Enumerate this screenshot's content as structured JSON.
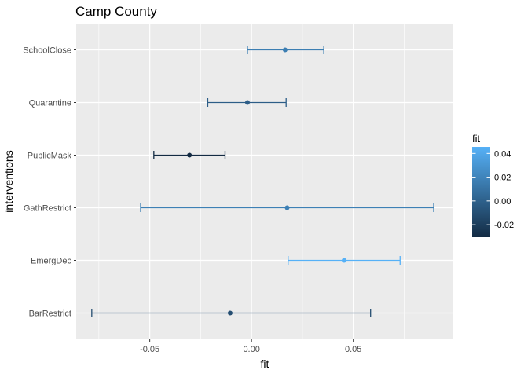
{
  "chart_data": {
    "type": "errorbar",
    "title": "Camp County",
    "xlabel": "fit",
    "ylabel": "interventions",
    "xlim": [
      -0.0785,
      0.0915
    ],
    "x_ticks": [
      -0.05,
      0.0,
      0.05
    ],
    "x_tick_labels": [
      "-0.05",
      "0.00",
      "0.05"
    ],
    "categories": [
      "SchoolClose",
      "Quarantine",
      "PublicMask",
      "GathRestrict",
      "EmergDec",
      "BarRestrict"
    ],
    "series": [
      {
        "fit": [
          0.0165,
          -0.002,
          -0.0305,
          0.0175,
          0.0455,
          -0.0105
        ],
        "lower": [
          -0.002,
          -0.0215,
          -0.048,
          -0.0545,
          0.018,
          -0.0785
        ],
        "upper": [
          0.0355,
          0.017,
          -0.013,
          0.0895,
          0.073,
          0.0585
        ]
      }
    ],
    "grid": true,
    "legend": {
      "title": "fit",
      "position": "right",
      "type": "colorbar",
      "range": [
        -0.0305,
        0.0455
      ],
      "ticks": [
        0.04,
        0.02,
        0.0,
        -0.02
      ],
      "tick_labels": [
        "0.04",
        "0.02",
        "0.00",
        "-0.02"
      ],
      "low_color": "#132B43",
      "high_color": "#56B1F7"
    }
  }
}
